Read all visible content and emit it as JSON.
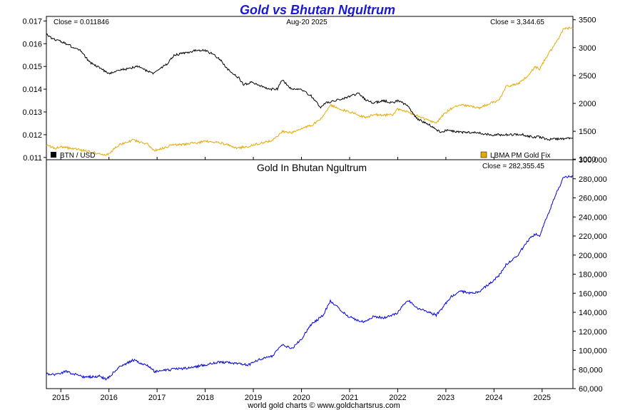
{
  "title": "Gold vs Bhutan Ngultrum",
  "footer": "world gold charts © www.goldchartsrus.com",
  "colors": {
    "title": "#1a1ad6",
    "btn": "#000000",
    "gold": "#e8a800",
    "gold_btn": "#0000e0"
  },
  "chart_data": [
    {
      "type": "line",
      "panel": "top",
      "header_left": "Close = 0.011846",
      "header_center": "Aug-20  2025",
      "header_right": "Close = 3,344.65",
      "x_ticks": [
        "2015",
        "2016",
        "2017",
        "2018",
        "2019",
        "2020",
        "2021",
        "2022",
        "2023",
        "2024",
        "2025"
      ],
      "xlim": [
        2014.7,
        2025.64
      ],
      "y_left": {
        "ticks": [
          "0.011",
          "0.012",
          "0.013",
          "0.014",
          "0.015",
          "0.016",
          "0.017"
        ],
        "range": [
          0.0109,
          0.0172
        ]
      },
      "y_right": {
        "ticks": [
          "1000",
          "1500",
          "2000",
          "2500",
          "3000",
          "3500"
        ],
        "range": [
          990,
          3560
        ]
      },
      "legend": [
        {
          "label": "BTN / USD",
          "color": "#000000",
          "placement": "bottom-left"
        },
        {
          "label": "LBMA PM Gold Fix",
          "color": "#e8a800",
          "placement": "bottom-right"
        }
      ],
      "series": [
        {
          "name": "BTN / USD",
          "axis": "left",
          "x": [
            2014.7,
            2014.85,
            2015.0,
            2015.2,
            2015.4,
            2015.6,
            2015.75,
            2016.0,
            2016.15,
            2016.4,
            2016.6,
            2016.9,
            2017.0,
            2017.2,
            2017.35,
            2017.6,
            2017.8,
            2018.0,
            2018.2,
            2018.35,
            2018.5,
            2018.7,
            2018.8,
            2018.95,
            2019.1,
            2019.3,
            2019.5,
            2019.6,
            2019.8,
            2020.0,
            2020.2,
            2020.4,
            2020.5,
            2020.7,
            2020.9,
            2021.0,
            2021.2,
            2021.35,
            2021.5,
            2021.7,
            2021.9,
            2022.0,
            2022.2,
            2022.4,
            2022.6,
            2022.75,
            2022.9,
            2023.0,
            2023.3,
            2023.6,
            2023.9,
            2024.0,
            2024.3,
            2024.6,
            2024.8,
            2024.95,
            2025.1,
            2025.3,
            2025.64
          ],
          "y": [
            0.0164,
            0.0162,
            0.0161,
            0.0159,
            0.0157,
            0.0152,
            0.015,
            0.0147,
            0.0148,
            0.0149,
            0.015,
            0.0147,
            0.0148,
            0.0151,
            0.0155,
            0.0156,
            0.0157,
            0.0157,
            0.0155,
            0.0152,
            0.0148,
            0.0145,
            0.0142,
            0.0143,
            0.0142,
            0.014,
            0.014,
            0.0144,
            0.014,
            0.014,
            0.0137,
            0.0132,
            0.0134,
            0.0135,
            0.0136,
            0.0137,
            0.0138,
            0.0135,
            0.0134,
            0.0135,
            0.0134,
            0.0135,
            0.0133,
            0.0127,
            0.0125,
            0.0123,
            0.0121,
            0.0122,
            0.0121,
            0.0121,
            0.012,
            0.012,
            0.012,
            0.012,
            0.0119,
            0.0119,
            0.0118,
            0.0118,
            0.011846
          ]
        },
        {
          "name": "LBMA PM Gold Fix",
          "axis": "right",
          "x": [
            2014.7,
            2014.9,
            2015.0,
            2015.3,
            2015.5,
            2015.8,
            2015.95,
            2016.2,
            2016.5,
            2016.8,
            2016.95,
            2017.3,
            2017.7,
            2018.0,
            2018.3,
            2018.65,
            2018.9,
            2019.2,
            2019.4,
            2019.6,
            2019.8,
            2020.0,
            2020.2,
            2020.45,
            2020.6,
            2020.8,
            2021.0,
            2021.2,
            2021.35,
            2021.5,
            2021.7,
            2021.9,
            2022.0,
            2022.2,
            2022.4,
            2022.6,
            2022.8,
            2022.95,
            2023.1,
            2023.3,
            2023.5,
            2023.7,
            2023.9,
            2024.1,
            2024.25,
            2024.5,
            2024.7,
            2024.85,
            2024.95,
            2025.1,
            2025.3,
            2025.45,
            2025.64
          ],
          "y": [
            1240,
            1200,
            1220,
            1180,
            1150,
            1100,
            1070,
            1250,
            1340,
            1270,
            1150,
            1250,
            1280,
            1320,
            1300,
            1200,
            1230,
            1300,
            1330,
            1500,
            1470,
            1560,
            1600,
            1760,
            1970,
            1900,
            1850,
            1780,
            1750,
            1800,
            1790,
            1800,
            1900,
            1850,
            1780,
            1700,
            1650,
            1800,
            1900,
            1980,
            1950,
            1920,
            2000,
            2050,
            2300,
            2350,
            2500,
            2650,
            2620,
            2850,
            3100,
            3350,
            3344.65
          ]
        }
      ]
    },
    {
      "type": "line",
      "panel": "bottom",
      "title": "Gold In Bhutan Ngultrum",
      "header_right": "Close = 282,355.45",
      "xlim": [
        2014.7,
        2025.64
      ],
      "y_right": {
        "ticks": [
          "60,000",
          "80,000",
          "100,000",
          "120,000",
          "140,000",
          "160,000",
          "180,000",
          "200,000",
          "220,000",
          "240,000",
          "260,000",
          "280,000",
          "300,000"
        ],
        "range": [
          60000,
          300000
        ]
      },
      "series": [
        {
          "name": "Gold In Bhutan Ngultrum",
          "axis": "right",
          "x": [
            2014.7,
            2014.9,
            2015.1,
            2015.3,
            2015.5,
            2015.8,
            2015.95,
            2016.2,
            2016.5,
            2016.8,
            2016.95,
            2017.3,
            2017.7,
            2018.0,
            2018.3,
            2018.65,
            2018.9,
            2019.2,
            2019.4,
            2019.6,
            2019.8,
            2020.0,
            2020.2,
            2020.45,
            2020.6,
            2020.8,
            2021.0,
            2021.2,
            2021.35,
            2021.5,
            2021.7,
            2021.9,
            2022.0,
            2022.2,
            2022.4,
            2022.6,
            2022.8,
            2022.95,
            2023.1,
            2023.3,
            2023.5,
            2023.7,
            2023.9,
            2024.1,
            2024.25,
            2024.5,
            2024.7,
            2024.85,
            2024.95,
            2025.1,
            2025.3,
            2025.45,
            2025.64
          ],
          "y": [
            75000,
            75000,
            78000,
            75000,
            72000,
            73000,
            70000,
            82000,
            90000,
            84000,
            78000,
            80000,
            82000,
            85000,
            88000,
            86000,
            85000,
            92000,
            94000,
            106000,
            102000,
            112000,
            127000,
            137000,
            152000,
            143000,
            135000,
            131000,
            130000,
            136000,
            134000,
            137000,
            140000,
            153000,
            145000,
            141000,
            137000,
            146000,
            156000,
            162000,
            160000,
            162000,
            170000,
            178000,
            190000,
            200000,
            215000,
            222000,
            220000,
            240000,
            265000,
            282000,
            282355.45
          ]
        }
      ]
    }
  ]
}
